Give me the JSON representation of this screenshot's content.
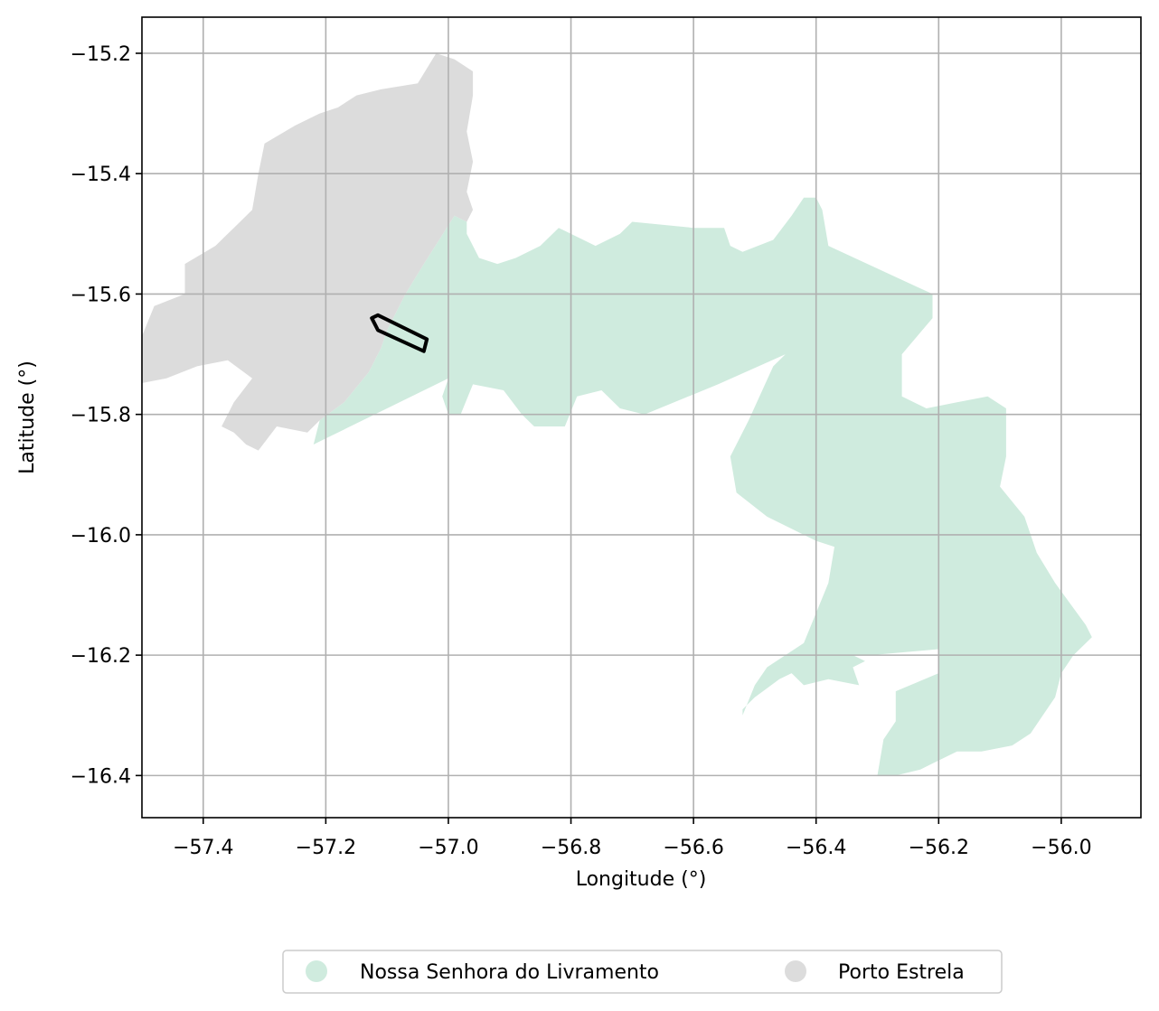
{
  "chart_data": {
    "type": "map",
    "title": "",
    "xlabel": "Longitude (°)",
    "ylabel": "Latitude (°)",
    "xlim": [
      -57.5,
      -55.87
    ],
    "ylim": [
      -16.47,
      -15.14
    ],
    "x_ticks": [
      -57.4,
      -57.2,
      -57.0,
      -56.8,
      -56.6,
      -56.4,
      -56.2,
      -56.0
    ],
    "y_ticks": [
      -15.2,
      -15.4,
      -15.6,
      -15.8,
      -16.0,
      -16.2,
      -16.4
    ],
    "x_tick_labels": [
      "−57.4",
      "−57.2",
      "−57.0",
      "−56.8",
      "−56.6",
      "−56.4",
      "−56.2",
      "−56.0"
    ],
    "y_tick_labels": [
      "−15.2",
      "−15.4",
      "−15.6",
      "−15.8",
      "−16.0",
      "−16.2",
      "−16.4"
    ],
    "grid": true,
    "legend_position": "bottom-center",
    "regions": [
      {
        "name": "Nossa Senhora do Livramento",
        "color": "#cfebde",
        "outline": [
          [
            -57.22,
            -15.85
          ],
          [
            -57.21,
            -15.81
          ],
          [
            -57.17,
            -15.78
          ],
          [
            -57.13,
            -15.73
          ],
          [
            -57.11,
            -15.69
          ],
          [
            -57.1,
            -15.66
          ],
          [
            -57.07,
            -15.6
          ],
          [
            -57.04,
            -15.55
          ],
          [
            -56.99,
            -15.47
          ],
          [
            -56.97,
            -15.48
          ],
          [
            -56.97,
            -15.5
          ],
          [
            -56.96,
            -15.52
          ],
          [
            -56.95,
            -15.54
          ],
          [
            -56.92,
            -15.55
          ],
          [
            -56.89,
            -15.54
          ],
          [
            -56.85,
            -15.52
          ],
          [
            -56.82,
            -15.49
          ],
          [
            -56.8,
            -15.5
          ],
          [
            -56.76,
            -15.52
          ],
          [
            -56.72,
            -15.5
          ],
          [
            -56.7,
            -15.48
          ],
          [
            -56.6,
            -15.49
          ],
          [
            -56.55,
            -15.49
          ],
          [
            -56.54,
            -15.52
          ],
          [
            -56.52,
            -15.53
          ],
          [
            -56.47,
            -15.51
          ],
          [
            -56.44,
            -15.47
          ],
          [
            -56.42,
            -15.44
          ],
          [
            -56.4,
            -15.44
          ],
          [
            -56.39,
            -15.46
          ],
          [
            -56.38,
            -15.52
          ],
          [
            -56.21,
            -15.6
          ],
          [
            -56.21,
            -15.64
          ],
          [
            -56.26,
            -15.7
          ],
          [
            -56.26,
            -15.77
          ],
          [
            -56.22,
            -15.79
          ],
          [
            -56.17,
            -15.78
          ],
          [
            -56.12,
            -15.77
          ],
          [
            -56.09,
            -15.79
          ],
          [
            -56.09,
            -15.87
          ],
          [
            -56.1,
            -15.92
          ],
          [
            -56.06,
            -15.97
          ],
          [
            -56.04,
            -16.03
          ],
          [
            -56.01,
            -16.08
          ],
          [
            -55.96,
            -16.15
          ],
          [
            -55.95,
            -16.17
          ],
          [
            -55.98,
            -16.2
          ],
          [
            -56.0,
            -16.23
          ],
          [
            -56.01,
            -16.27
          ],
          [
            -56.03,
            -16.3
          ],
          [
            -56.05,
            -16.33
          ],
          [
            -56.08,
            -16.35
          ],
          [
            -56.13,
            -16.36
          ],
          [
            -56.17,
            -16.36
          ],
          [
            -56.21,
            -16.38
          ],
          [
            -56.23,
            -16.39
          ],
          [
            -56.27,
            -16.4
          ],
          [
            -56.3,
            -16.4
          ],
          [
            -56.29,
            -16.34
          ],
          [
            -56.27,
            -16.31
          ],
          [
            -56.27,
            -16.26
          ],
          [
            -56.2,
            -16.23
          ],
          [
            -56.2,
            -16.19
          ],
          [
            -56.31,
            -16.2
          ],
          [
            -56.34,
            -16.2
          ],
          [
            -56.32,
            -16.21
          ],
          [
            -56.34,
            -16.22
          ],
          [
            -56.33,
            -16.25
          ],
          [
            -56.38,
            -16.24
          ],
          [
            -56.42,
            -16.25
          ],
          [
            -56.44,
            -16.23
          ],
          [
            -56.46,
            -16.24
          ],
          [
            -56.5,
            -16.27
          ],
          [
            -56.52,
            -16.29
          ],
          [
            -56.52,
            -16.3
          ],
          [
            -56.5,
            -16.25
          ],
          [
            -56.48,
            -16.22
          ],
          [
            -56.42,
            -16.18
          ],
          [
            -56.4,
            -16.13
          ],
          [
            -56.38,
            -16.08
          ],
          [
            -56.37,
            -16.02
          ],
          [
            -56.4,
            -16.01
          ],
          [
            -56.48,
            -15.97
          ],
          [
            -56.53,
            -15.93
          ],
          [
            -56.54,
            -15.87
          ],
          [
            -56.51,
            -15.81
          ],
          [
            -56.47,
            -15.72
          ],
          [
            -56.45,
            -15.7
          ],
          [
            -56.56,
            -15.75
          ],
          [
            -56.68,
            -15.8
          ],
          [
            -56.72,
            -15.79
          ],
          [
            -56.75,
            -15.76
          ],
          [
            -56.79,
            -15.77
          ],
          [
            -56.81,
            -15.82
          ],
          [
            -56.86,
            -15.82
          ],
          [
            -56.88,
            -15.8
          ],
          [
            -56.91,
            -15.76
          ],
          [
            -56.96,
            -15.75
          ],
          [
            -56.98,
            -15.8
          ],
          [
            -57.0,
            -15.8
          ],
          [
            -57.01,
            -15.77
          ],
          [
            -57.0,
            -15.74
          ],
          [
            -57.2,
            -15.84
          ]
        ]
      },
      {
        "name": "Porto Estrela",
        "color": "#dcdcdc",
        "outline": [
          [
            -57.33,
            -15.85
          ],
          [
            -57.35,
            -15.83
          ],
          [
            -57.37,
            -15.82
          ],
          [
            -57.35,
            -15.78
          ],
          [
            -57.32,
            -15.74
          ],
          [
            -57.36,
            -15.71
          ],
          [
            -57.41,
            -15.72
          ],
          [
            -57.46,
            -15.74
          ],
          [
            -57.51,
            -15.75
          ],
          [
            -57.51,
            -15.72
          ],
          [
            -57.5,
            -15.67
          ],
          [
            -57.48,
            -15.62
          ],
          [
            -57.43,
            -15.6
          ],
          [
            -57.43,
            -15.55
          ],
          [
            -57.38,
            -15.52
          ],
          [
            -57.35,
            -15.49
          ],
          [
            -57.32,
            -15.46
          ],
          [
            -57.31,
            -15.4
          ],
          [
            -57.3,
            -15.35
          ],
          [
            -57.25,
            -15.32
          ],
          [
            -57.21,
            -15.3
          ],
          [
            -57.18,
            -15.29
          ],
          [
            -57.15,
            -15.27
          ],
          [
            -57.11,
            -15.26
          ],
          [
            -57.05,
            -15.25
          ],
          [
            -57.02,
            -15.2
          ],
          [
            -56.99,
            -15.21
          ],
          [
            -56.96,
            -15.23
          ],
          [
            -56.96,
            -15.27
          ],
          [
            -56.97,
            -15.33
          ],
          [
            -56.96,
            -15.38
          ],
          [
            -56.97,
            -15.43
          ],
          [
            -56.96,
            -15.46
          ],
          [
            -56.97,
            -15.48
          ],
          [
            -56.99,
            -15.47
          ],
          [
            -57.04,
            -15.55
          ],
          [
            -57.07,
            -15.6
          ],
          [
            -57.1,
            -15.66
          ],
          [
            -57.11,
            -15.69
          ],
          [
            -57.13,
            -15.73
          ],
          [
            -57.17,
            -15.78
          ],
          [
            -57.21,
            -15.81
          ],
          [
            -57.23,
            -15.83
          ],
          [
            -57.28,
            -15.82
          ],
          [
            -57.31,
            -15.86
          ]
        ]
      }
    ],
    "highlight_outline": [
      [
        -57.125,
        -15.64
      ],
      [
        -57.115,
        -15.635
      ],
      [
        -57.035,
        -15.675
      ],
      [
        -57.04,
        -15.695
      ],
      [
        -57.115,
        -15.66
      ],
      [
        -57.12,
        -15.65
      ]
    ],
    "legend": [
      "Nossa Senhora do Livramento",
      "Porto Estrela"
    ]
  }
}
